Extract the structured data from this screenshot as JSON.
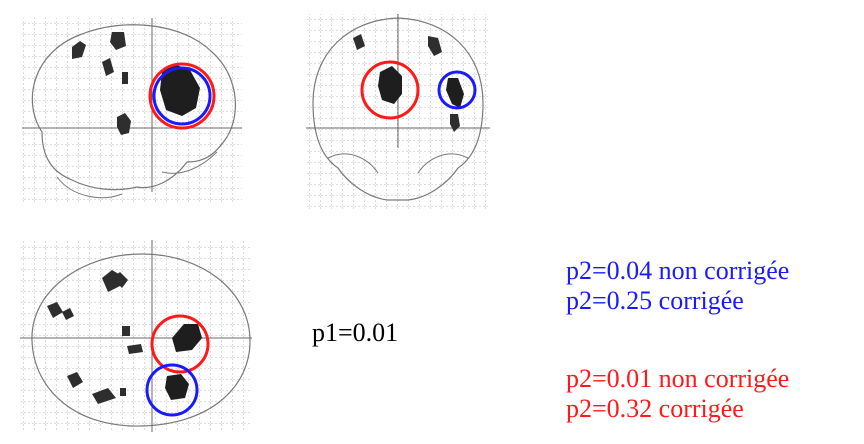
{
  "stats": {
    "p1": "p1=0.01",
    "blue_line1": "p2=0.04 non corrigée",
    "blue_line2": "p2=0.25 corrigée",
    "red_line1": "p2=0.01 non corrigée",
    "red_line2": "p2=0.32 corrigée"
  },
  "colors": {
    "blue_circle": "#1a1aff",
    "red_circle": "#ff1a1a",
    "blob": "#2a2a2a",
    "grid": "#9a9a9a",
    "outline": "#808080"
  },
  "views": [
    "sagittal",
    "coronal",
    "axial"
  ]
}
